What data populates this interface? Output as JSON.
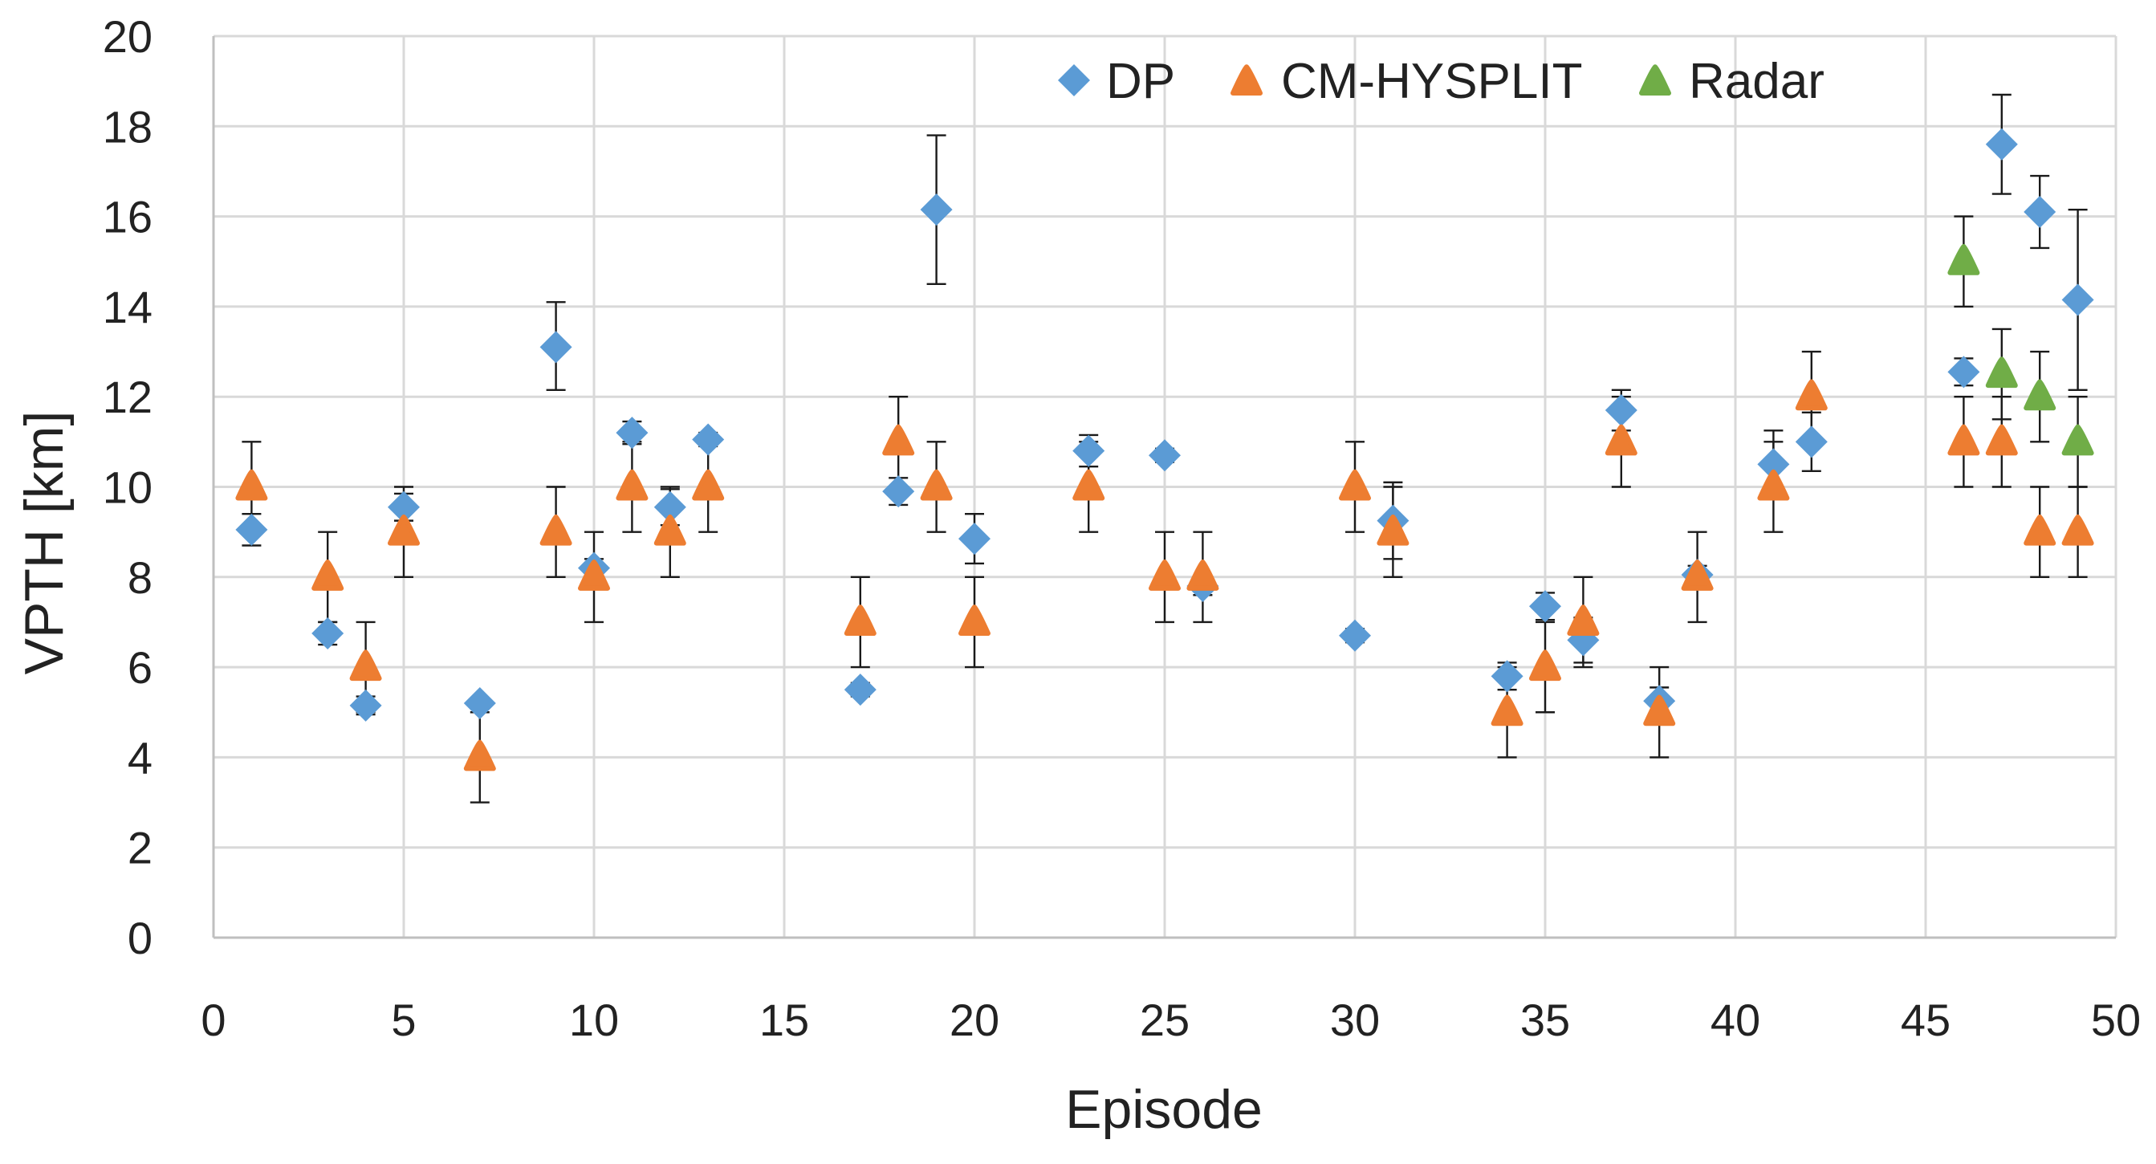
{
  "chart_data": {
    "type": "scatter",
    "title": "",
    "xlabel": "Episode",
    "ylabel": "VPTH [km]",
    "xlim": [
      0,
      50
    ],
    "ylim": [
      0,
      20
    ],
    "x_ticks": [
      0,
      5,
      10,
      15,
      20,
      25,
      30,
      35,
      40,
      45,
      50
    ],
    "y_ticks": [
      0,
      2,
      4,
      6,
      8,
      10,
      12,
      14,
      16,
      18,
      20
    ],
    "grid": true,
    "legend_position": "top-right",
    "series": [
      {
        "name": "DP",
        "marker": "diamond",
        "color": "#5b9bd5",
        "points": [
          {
            "x": 1,
            "y": 9.05,
            "err_lo": 0.35,
            "err_hi": 0.35
          },
          {
            "x": 3,
            "y": 6.75,
            "err_lo": 0.25,
            "err_hi": 0.25
          },
          {
            "x": 4,
            "y": 5.15,
            "err_lo": 0.2,
            "err_hi": 0.2
          },
          {
            "x": 5,
            "y": 9.55,
            "err_lo": 0.3,
            "err_hi": 0.3
          },
          {
            "x": 7,
            "y": 5.2,
            "err_lo": 0.1,
            "err_hi": 0.1
          },
          {
            "x": 9,
            "y": 13.1,
            "err_lo": 0.95,
            "err_hi": 1.0
          },
          {
            "x": 10,
            "y": 8.2,
            "err_lo": 0.2,
            "err_hi": 0.2
          },
          {
            "x": 11,
            "y": 11.2,
            "err_lo": 0.25,
            "err_hi": 0.25
          },
          {
            "x": 12,
            "y": 9.55,
            "err_lo": 0.4,
            "err_hi": 0.4
          },
          {
            "x": 13,
            "y": 11.05,
            "err_lo": 0.15,
            "err_hi": 0.15
          },
          {
            "x": 17,
            "y": 5.5,
            "err_lo": 0.15,
            "err_hi": 0.15
          },
          {
            "x": 18,
            "y": 9.9,
            "err_lo": 0.3,
            "err_hi": 0.3
          },
          {
            "x": 19,
            "y": 16.15,
            "err_lo": 1.65,
            "err_hi": 1.65
          },
          {
            "x": 20,
            "y": 8.85,
            "err_lo": 0.55,
            "err_hi": 0.55
          },
          {
            "x": 23,
            "y": 10.8,
            "err_lo": 0.35,
            "err_hi": 0.35
          },
          {
            "x": 25,
            "y": 10.7,
            "err_lo": 0.15,
            "err_hi": 0.15
          },
          {
            "x": 26,
            "y": 7.8,
            "err_lo": 0.2,
            "err_hi": 0.2
          },
          {
            "x": 30,
            "y": 6.7,
            "err_lo": 0.15,
            "err_hi": 0.15
          },
          {
            "x": 31,
            "y": 9.25,
            "err_lo": 0.85,
            "err_hi": 0.85
          },
          {
            "x": 34,
            "y": 5.8,
            "err_lo": 0.3,
            "err_hi": 0.3
          },
          {
            "x": 35,
            "y": 7.35,
            "err_lo": 0.3,
            "err_hi": 0.3
          },
          {
            "x": 36,
            "y": 6.6,
            "err_lo": 0.5,
            "err_hi": 0.5
          },
          {
            "x": 37,
            "y": 11.7,
            "err_lo": 0.45,
            "err_hi": 0.45
          },
          {
            "x": 38,
            "y": 5.25,
            "err_lo": 0.3,
            "err_hi": 0.3
          },
          {
            "x": 39,
            "y": 8.05,
            "err_lo": 0.2,
            "err_hi": 0.2
          },
          {
            "x": 41,
            "y": 10.5,
            "err_lo": 0.75,
            "err_hi": 0.75
          },
          {
            "x": 42,
            "y": 11.0,
            "err_lo": 0.65,
            "err_hi": 0.65
          },
          {
            "x": 46,
            "y": 12.55,
            "err_lo": 0.3,
            "err_hi": 0.3
          },
          {
            "x": 47,
            "y": 17.6,
            "err_lo": 1.1,
            "err_hi": 1.1
          },
          {
            "x": 48,
            "y": 16.1,
            "err_lo": 0.8,
            "err_hi": 0.8
          },
          {
            "x": 49,
            "y": 14.15,
            "err_lo": 2.0,
            "err_hi": 2.0
          }
        ]
      },
      {
        "name": "CM-HYSPLIT",
        "marker": "triangle",
        "color": "#ed7d31",
        "points": [
          {
            "x": 1,
            "y": 10,
            "err_lo": 1,
            "err_hi": 1
          },
          {
            "x": 3,
            "y": 8,
            "err_lo": 1,
            "err_hi": 1
          },
          {
            "x": 4,
            "y": 6,
            "err_lo": 1,
            "err_hi": 1
          },
          {
            "x": 5,
            "y": 9,
            "err_lo": 1,
            "err_hi": 1
          },
          {
            "x": 7,
            "y": 4,
            "err_lo": 1,
            "err_hi": 1
          },
          {
            "x": 9,
            "y": 9,
            "err_lo": 1,
            "err_hi": 1
          },
          {
            "x": 10,
            "y": 8,
            "err_lo": 1,
            "err_hi": 1
          },
          {
            "x": 11,
            "y": 10,
            "err_lo": 1,
            "err_hi": 1
          },
          {
            "x": 12,
            "y": 9,
            "err_lo": 1,
            "err_hi": 1
          },
          {
            "x": 13,
            "y": 10,
            "err_lo": 1,
            "err_hi": 1
          },
          {
            "x": 17,
            "y": 7,
            "err_lo": 1,
            "err_hi": 1
          },
          {
            "x": 18,
            "y": 11,
            "err_lo": 1,
            "err_hi": 1
          },
          {
            "x": 19,
            "y": 10,
            "err_lo": 1,
            "err_hi": 1
          },
          {
            "x": 20,
            "y": 7,
            "err_lo": 1,
            "err_hi": 1
          },
          {
            "x": 23,
            "y": 10,
            "err_lo": 1,
            "err_hi": 1
          },
          {
            "x": 25,
            "y": 8,
            "err_lo": 1,
            "err_hi": 1
          },
          {
            "x": 26,
            "y": 8,
            "err_lo": 1,
            "err_hi": 1
          },
          {
            "x": 30,
            "y": 10,
            "err_lo": 1,
            "err_hi": 1
          },
          {
            "x": 31,
            "y": 9,
            "err_lo": 1,
            "err_hi": 1
          },
          {
            "x": 34,
            "y": 5,
            "err_lo": 1,
            "err_hi": 1
          },
          {
            "x": 35,
            "y": 6,
            "err_lo": 1,
            "err_hi": 1
          },
          {
            "x": 36,
            "y": 7,
            "err_lo": 1,
            "err_hi": 1
          },
          {
            "x": 37,
            "y": 11,
            "err_lo": 1,
            "err_hi": 1
          },
          {
            "x": 38,
            "y": 5,
            "err_lo": 1,
            "err_hi": 1
          },
          {
            "x": 39,
            "y": 8,
            "err_lo": 1,
            "err_hi": 1
          },
          {
            "x": 41,
            "y": 10,
            "err_lo": 1,
            "err_hi": 1
          },
          {
            "x": 42,
            "y": 12,
            "err_lo": 1,
            "err_hi": 1
          },
          {
            "x": 46,
            "y": 11,
            "err_lo": 1,
            "err_hi": 1
          },
          {
            "x": 47,
            "y": 11,
            "err_lo": 1,
            "err_hi": 1
          },
          {
            "x": 48,
            "y": 9,
            "err_lo": 1,
            "err_hi": 1
          },
          {
            "x": 49,
            "y": 9,
            "err_lo": 1,
            "err_hi": 1
          }
        ]
      },
      {
        "name": "Radar",
        "marker": "triangle",
        "color": "#70ad47",
        "points": [
          {
            "x": 46,
            "y": 15,
            "err_lo": 1,
            "err_hi": 1
          },
          {
            "x": 47,
            "y": 12.5,
            "err_lo": 1,
            "err_hi": 1
          },
          {
            "x": 48,
            "y": 12,
            "err_lo": 1,
            "err_hi": 1
          },
          {
            "x": 49,
            "y": 11,
            "err_lo": 1,
            "err_hi": 1
          }
        ]
      }
    ]
  }
}
